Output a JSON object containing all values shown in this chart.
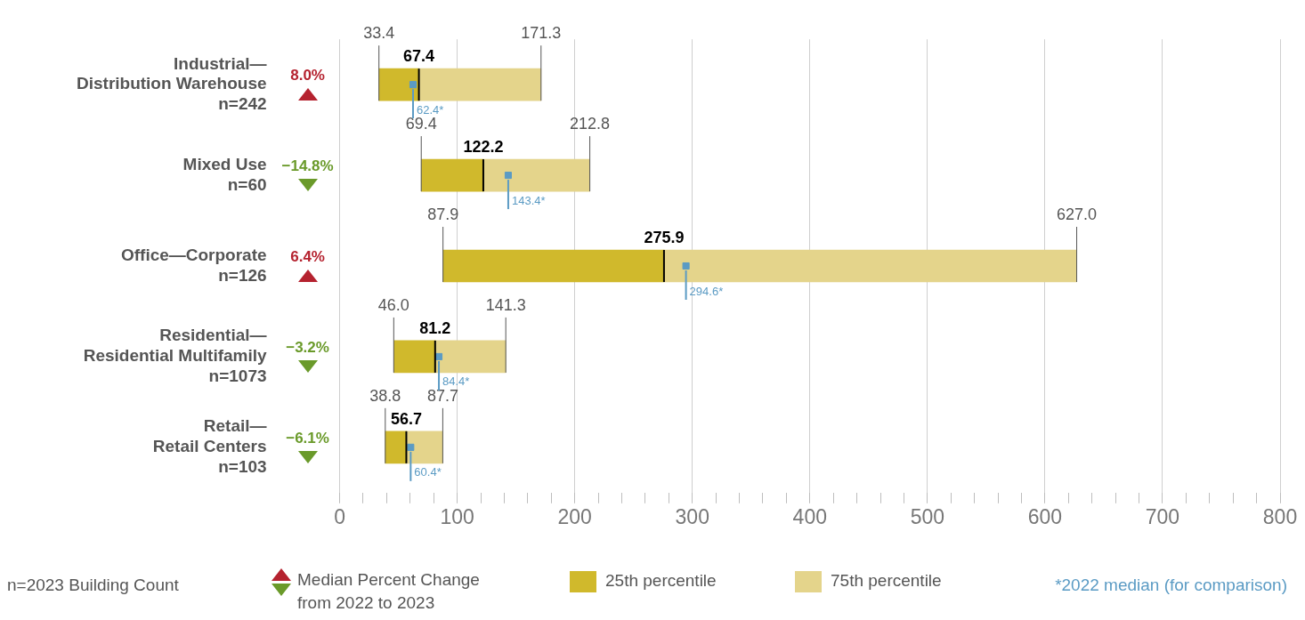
{
  "chart_data": {
    "type": "bar",
    "orientation": "horizontal",
    "legend": "bottom",
    "grid": "x",
    "categories": [
      "Industrial—\nDistribution Warehouse\nn=242",
      "Mixed Use\nn=60",
      "Office—Corporate\nn=126",
      "Residential—\nResidential Multifamily\nn=1073",
      "Retail—\nRetail Centers\nn=103"
    ],
    "xlim": [
      0,
      800
    ],
    "xticks": [
      0,
      {
        "value": 20,
        "label": null
      },
      {
        "value": 40,
        "label": null
      },
      {
        "value": 60,
        "label": null
      },
      {
        "value": 80,
        "label": null
      },
      100,
      {
        "value": 120,
        "label": null
      },
      {
        "value": 140,
        "label": null
      },
      {
        "value": 160,
        "label": null
      },
      {
        "value": 180,
        "label": null
      },
      200,
      {
        "value": 220,
        "label": null
      },
      {
        "value": 240,
        "label": null
      },
      {
        "value": 260,
        "label": null
      },
      {
        "value": 280,
        "label": null
      },
      300,
      {
        "value": 320,
        "label": null
      },
      {
        "value": 340,
        "label": null
      },
      {
        "value": 360,
        "label": null
      },
      {
        "value": 380,
        "label": null
      },
      400,
      {
        "value": 420,
        "label": null
      },
      {
        "value": 440,
        "label": null
      },
      {
        "value": 460,
        "label": null
      },
      {
        "value": 480,
        "label": null
      },
      500,
      {
        "value": 520,
        "label": null
      },
      {
        "value": 540,
        "label": null
      },
      {
        "value": 560,
        "label": null
      },
      {
        "value": 580,
        "label": null
      },
      600,
      {
        "value": 620,
        "label": null
      },
      {
        "value": 640,
        "label": null
      },
      {
        "value": 660,
        "label": null
      },
      {
        "value": 680,
        "label": null
      },
      700,
      {
        "value": 720,
        "label": null
      },
      {
        "value": 740,
        "label": null
      },
      {
        "value": 760,
        "label": null
      },
      {
        "value": 780,
        "label": null
      },
      800
    ],
    "series": [
      {
        "name": "25th percentile",
        "color": "#d0b92c",
        "base": [
          33.4,
          69.4,
          87.9,
          46.0,
          38.8
        ],
        "values": [
          34.0,
          52.8,
          188.0,
          35.2,
          17.9
        ]
      },
      {
        "name": "75th percentile",
        "color": "#e4d48b",
        "base": [
          67.4,
          122.2,
          275.9,
          81.2,
          56.7
        ],
        "values": [
          103.9,
          90.6,
          351.1,
          60.1,
          31.0
        ]
      },
      {
        "name": "*2022 median (for comparison)",
        "type": "scatter",
        "marker": "square",
        "color": "#5b9bc4",
        "values": [
          62.4,
          143.4,
          294.6,
          84.4,
          60.4
        ],
        "value_labels": [
          "62.4*",
          "143.4*",
          "294.6*",
          "84.4*",
          "60.4*"
        ]
      }
    ],
    "annotations": [
      {
        "text": "33.4",
        "x": 33.4,
        "y": "Industrial—\nDistribution Warehouse\nn=242"
      },
      {
        "text": "67.4",
        "x": 67.4,
        "y": "Industrial—\nDistribution Warehouse\nn=242"
      },
      {
        "text": "171.3",
        "x": 171.3,
        "y": "Industrial—\nDistribution Warehouse\nn=242"
      },
      {
        "text": "69.4",
        "x": 69.4,
        "y": "Mixed Use\nn=60"
      },
      {
        "text": "122.2",
        "x": 122.2,
        "y": "Mixed Use\nn=60"
      },
      {
        "text": "212.8",
        "x": 212.8,
        "y": "Mixed Use\nn=60"
      },
      {
        "text": "87.9",
        "x": 87.9,
        "y": "Office—Corporate\nn=126"
      },
      {
        "text": "275.9",
        "x": 275.9,
        "y": "Office—Corporate\nn=126"
      },
      {
        "text": "627.0",
        "x": 627.0,
        "y": "Office—Corporate\nn=126"
      },
      {
        "text": "46.0",
        "x": 46.0,
        "y": "Residential—\nResidential Multifamily\nn=1073"
      },
      {
        "text": "81.2",
        "x": 81.2,
        "y": "Residential—\nResidential Multifamily\nn=1073"
      },
      {
        "text": "141.3",
        "x": 141.3,
        "y": "Residential—\nResidential Multifamily\nn=1073"
      },
      {
        "text": "38.8",
        "x": 38.8,
        "y": "Retail—\nRetail Centers\nn=103"
      },
      {
        "text": "56.7",
        "x": 56.7,
        "y": "Retail—\nRetail Centers\nn=103"
      },
      {
        "text": "87.7",
        "x": 87.7,
        "y": "Retail—\nRetail Centers\nn=103"
      },
      "8.0%",
      "−14.8%",
      "6.4%",
      "−3.2%",
      "−6.1%",
      "n=2023 Building Count",
      "Median Percent Change from 2022 to 2023"
    ]
  }
}
